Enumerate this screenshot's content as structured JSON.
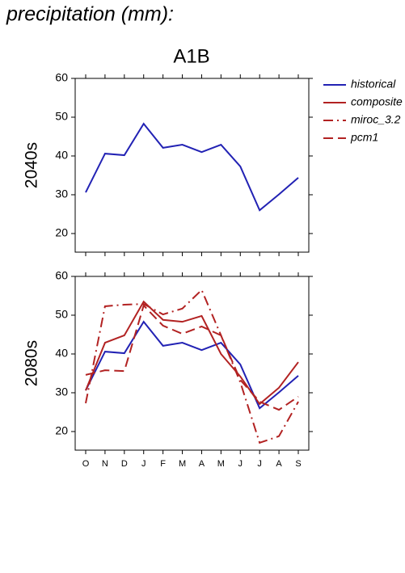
{
  "title": "precipitation (mm):",
  "chart_data": [
    {
      "type": "line",
      "title": "A1B",
      "ylabel": "2040s",
      "ylim": [
        15.2,
        60
      ],
      "yticks": [
        20,
        30,
        40,
        50,
        60
      ],
      "series": [
        {
          "name": "historical",
          "color": "#2222b4",
          "style": "solid",
          "values": [
            30.6,
            40.6,
            40.2,
            48.3,
            42.1,
            42.9,
            41.0,
            42.9,
            37.3,
            26.0,
            30.1,
            34.4
          ]
        }
      ]
    },
    {
      "type": "line",
      "ylabel": "2080s",
      "categories": [
        "O",
        "N",
        "D",
        "J",
        "F",
        "M",
        "A",
        "M",
        "J",
        "J",
        "A",
        "S"
      ],
      "ylim": [
        15.2,
        60
      ],
      "yticks": [
        20,
        30,
        40,
        50,
        60
      ],
      "legend": "right",
      "series": [
        {
          "name": "historical",
          "color": "#2222b4",
          "style": "solid",
          "values": [
            30.6,
            40.6,
            40.2,
            48.3,
            42.1,
            42.9,
            41.0,
            42.9,
            37.3,
            26.0,
            30.1,
            34.4
          ]
        },
        {
          "name": "composite",
          "color": "#b22222",
          "style": "solid",
          "values": [
            30.6,
            42.9,
            44.8,
            53.5,
            48.8,
            48.3,
            49.8,
            40.0,
            34.2,
            27.1,
            31.3,
            37.9
          ]
        },
        {
          "name": "miroc_3.2",
          "color": "#b22222",
          "style": "dashdot",
          "values": [
            27.3,
            52.3,
            52.7,
            52.9,
            50.2,
            51.7,
            56.5,
            44.8,
            32.7,
            17.1,
            18.8,
            27.7
          ]
        },
        {
          "name": "pcm1",
          "color": "#b22222",
          "style": "dashed",
          "values": [
            34.6,
            35.8,
            35.6,
            52.5,
            47.3,
            45.2,
            47.1,
            44.8,
            33.3,
            27.7,
            25.6,
            29.0
          ]
        }
      ]
    }
  ]
}
